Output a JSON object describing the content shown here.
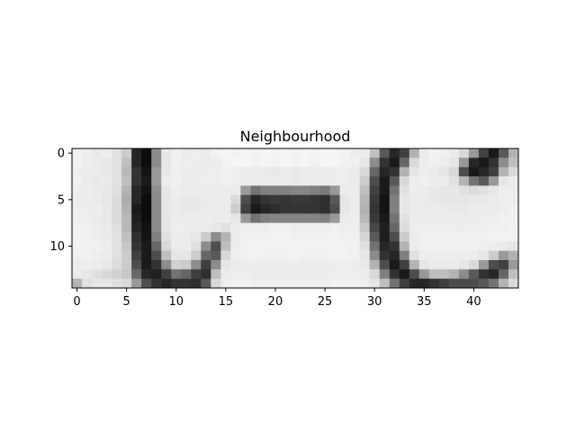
{
  "chart_data": {
    "type": "heatmap",
    "title": "Neighbourhood",
    "colormap": "grayscale (black = low, white = high)",
    "rows": 15,
    "cols": 45,
    "x_ticks": [
      0,
      5,
      10,
      15,
      20,
      25,
      30,
      35,
      40
    ],
    "y_ticks": [
      0,
      5,
      10
    ],
    "xlim": [
      -0.5,
      44.5
    ],
    "ylim": [
      14.5,
      -0.5
    ],
    "grid": false,
    "values": [
      [
        0.95,
        0.93,
        0.91,
        0.93,
        0.88,
        0.8,
        0.15,
        0.05,
        0.55,
        0.9,
        0.94,
        0.92,
        0.93,
        0.92,
        0.95,
        0.96,
        0.95,
        0.96,
        0.95,
        0.96,
        0.95,
        0.96,
        0.95,
        0.96,
        0.95,
        0.96,
        0.96,
        0.95,
        0.93,
        0.92,
        0.75,
        0.35,
        0.15,
        0.25,
        0.7,
        0.92,
        0.95,
        0.94,
        0.92,
        0.85,
        0.6,
        0.25,
        0.1,
        0.35,
        0.7
      ],
      [
        0.94,
        0.93,
        0.92,
        0.91,
        0.88,
        0.75,
        0.15,
        0.05,
        0.55,
        0.9,
        0.94,
        0.93,
        0.93,
        0.92,
        0.93,
        0.95,
        0.96,
        0.96,
        0.95,
        0.96,
        0.95,
        0.96,
        0.95,
        0.96,
        0.95,
        0.96,
        0.96,
        0.95,
        0.94,
        0.9,
        0.55,
        0.2,
        0.1,
        0.4,
        0.85,
        0.93,
        0.94,
        0.93,
        0.9,
        0.6,
        0.15,
        0.1,
        0.2,
        0.55,
        0.75
      ],
      [
        0.93,
        0.92,
        0.92,
        0.91,
        0.88,
        0.72,
        0.2,
        0.08,
        0.6,
        0.91,
        0.94,
        0.93,
        0.92,
        0.93,
        0.93,
        0.94,
        0.93,
        0.92,
        0.92,
        0.92,
        0.91,
        0.92,
        0.91,
        0.92,
        0.92,
        0.92,
        0.93,
        0.93,
        0.92,
        0.85,
        0.4,
        0.15,
        0.2,
        0.7,
        0.9,
        0.93,
        0.92,
        0.9,
        0.85,
        0.3,
        0.1,
        0.15,
        0.25,
        0.7,
        0.85
      ],
      [
        0.94,
        0.92,
        0.91,
        0.92,
        0.88,
        0.75,
        0.2,
        0.1,
        0.6,
        0.92,
        0.94,
        0.92,
        0.93,
        0.93,
        0.93,
        0.94,
        0.93,
        0.92,
        0.92,
        0.92,
        0.92,
        0.92,
        0.91,
        0.92,
        0.92,
        0.92,
        0.93,
        0.93,
        0.92,
        0.8,
        0.3,
        0.1,
        0.35,
        0.85,
        0.93,
        0.94,
        0.93,
        0.92,
        0.88,
        0.7,
        0.45,
        0.35,
        0.6,
        0.9,
        0.92
      ],
      [
        0.93,
        0.93,
        0.92,
        0.91,
        0.87,
        0.7,
        0.15,
        0.08,
        0.55,
        0.9,
        0.93,
        0.92,
        0.92,
        0.93,
        0.92,
        0.92,
        0.92,
        0.6,
        0.45,
        0.5,
        0.5,
        0.5,
        0.52,
        0.52,
        0.5,
        0.48,
        0.6,
        0.92,
        0.92,
        0.75,
        0.25,
        0.1,
        0.45,
        0.88,
        0.93,
        0.92,
        0.91,
        0.9,
        0.9,
        0.88,
        0.86,
        0.88,
        0.9,
        0.93,
        0.93
      ],
      [
        0.92,
        0.93,
        0.92,
        0.9,
        0.86,
        0.68,
        0.15,
        0.05,
        0.55,
        0.9,
        0.92,
        0.91,
        0.91,
        0.92,
        0.92,
        0.92,
        0.85,
        0.3,
        0.15,
        0.2,
        0.22,
        0.2,
        0.22,
        0.22,
        0.2,
        0.18,
        0.35,
        0.9,
        0.92,
        0.72,
        0.22,
        0.08,
        0.5,
        0.9,
        0.92,
        0.92,
        0.91,
        0.9,
        0.9,
        0.9,
        0.91,
        0.91,
        0.92,
        0.93,
        0.93
      ],
      [
        0.93,
        0.93,
        0.93,
        0.91,
        0.86,
        0.7,
        0.1,
        0.05,
        0.55,
        0.9,
        0.92,
        0.91,
        0.91,
        0.92,
        0.92,
        0.92,
        0.8,
        0.25,
        0.1,
        0.15,
        0.18,
        0.2,
        0.2,
        0.2,
        0.2,
        0.18,
        0.3,
        0.9,
        0.92,
        0.7,
        0.2,
        0.08,
        0.5,
        0.9,
        0.92,
        0.92,
        0.92,
        0.92,
        0.91,
        0.91,
        0.92,
        0.92,
        0.92,
        0.93,
        0.94
      ],
      [
        0.93,
        0.93,
        0.92,
        0.91,
        0.86,
        0.72,
        0.12,
        0.05,
        0.55,
        0.9,
        0.92,
        0.92,
        0.92,
        0.93,
        0.92,
        0.93,
        0.9,
        0.6,
        0.45,
        0.5,
        0.52,
        0.52,
        0.52,
        0.52,
        0.52,
        0.5,
        0.6,
        0.92,
        0.93,
        0.72,
        0.22,
        0.1,
        0.45,
        0.88,
        0.92,
        0.92,
        0.92,
        0.92,
        0.92,
        0.92,
        0.92,
        0.93,
        0.93,
        0.94,
        0.94
      ],
      [
        0.94,
        0.94,
        0.93,
        0.92,
        0.87,
        0.72,
        0.15,
        0.08,
        0.55,
        0.9,
        0.93,
        0.93,
        0.92,
        0.92,
        0.9,
        0.88,
        0.92,
        0.93,
        0.93,
        0.93,
        0.94,
        0.94,
        0.93,
        0.93,
        0.93,
        0.93,
        0.94,
        0.93,
        0.93,
        0.78,
        0.28,
        0.12,
        0.4,
        0.86,
        0.93,
        0.93,
        0.93,
        0.93,
        0.93,
        0.93,
        0.93,
        0.93,
        0.94,
        0.94,
        0.95
      ],
      [
        0.94,
        0.94,
        0.93,
        0.92,
        0.88,
        0.75,
        0.18,
        0.08,
        0.5,
        0.88,
        0.92,
        0.92,
        0.9,
        0.8,
        0.55,
        0.7,
        0.92,
        0.94,
        0.94,
        0.94,
        0.95,
        0.95,
        0.94,
        0.94,
        0.94,
        0.94,
        0.95,
        0.94,
        0.94,
        0.84,
        0.35,
        0.12,
        0.3,
        0.8,
        0.92,
        0.94,
        0.94,
        0.94,
        0.94,
        0.94,
        0.94,
        0.94,
        0.95,
        0.95,
        0.95
      ],
      [
        0.95,
        0.94,
        0.94,
        0.93,
        0.88,
        0.78,
        0.2,
        0.1,
        0.4,
        0.85,
        0.92,
        0.92,
        0.88,
        0.55,
        0.3,
        0.75,
        0.93,
        0.95,
        0.95,
        0.95,
        0.95,
        0.95,
        0.95,
        0.95,
        0.95,
        0.95,
        0.95,
        0.95,
        0.94,
        0.88,
        0.45,
        0.15,
        0.2,
        0.7,
        0.92,
        0.94,
        0.94,
        0.94,
        0.94,
        0.94,
        0.94,
        0.93,
        0.93,
        0.92,
        0.9
      ],
      [
        0.94,
        0.94,
        0.93,
        0.92,
        0.88,
        0.8,
        0.25,
        0.1,
        0.3,
        0.75,
        0.9,
        0.9,
        0.8,
        0.4,
        0.35,
        0.85,
        0.93,
        0.94,
        0.95,
        0.94,
        0.94,
        0.94,
        0.95,
        0.94,
        0.94,
        0.94,
        0.95,
        0.95,
        0.94,
        0.9,
        0.55,
        0.2,
        0.15,
        0.5,
        0.88,
        0.93,
        0.93,
        0.93,
        0.93,
        0.93,
        0.92,
        0.9,
        0.8,
        0.6,
        0.7
      ],
      [
        0.93,
        0.93,
        0.92,
        0.91,
        0.87,
        0.8,
        0.3,
        0.1,
        0.2,
        0.55,
        0.82,
        0.8,
        0.55,
        0.25,
        0.55,
        0.9,
        0.92,
        0.93,
        0.93,
        0.93,
        0.93,
        0.93,
        0.93,
        0.92,
        0.92,
        0.93,
        0.93,
        0.93,
        0.93,
        0.91,
        0.7,
        0.3,
        0.1,
        0.25,
        0.7,
        0.9,
        0.92,
        0.92,
        0.92,
        0.9,
        0.85,
        0.6,
        0.3,
        0.25,
        0.6
      ],
      [
        0.92,
        0.9,
        0.88,
        0.85,
        0.82,
        0.78,
        0.4,
        0.15,
        0.12,
        0.25,
        0.45,
        0.4,
        0.25,
        0.18,
        0.75,
        0.92,
        0.93,
        0.93,
        0.92,
        0.92,
        0.92,
        0.92,
        0.92,
        0.92,
        0.92,
        0.92,
        0.93,
        0.93,
        0.93,
        0.92,
        0.85,
        0.5,
        0.2,
        0.1,
        0.3,
        0.6,
        0.75,
        0.75,
        0.7,
        0.55,
        0.35,
        0.2,
        0.15,
        0.4,
        0.75
      ],
      [
        0.7,
        0.88,
        0.9,
        0.9,
        0.88,
        0.85,
        0.6,
        0.3,
        0.2,
        0.15,
        0.2,
        0.2,
        0.18,
        0.35,
        0.85,
        0.93,
        0.94,
        0.94,
        0.93,
        0.93,
        0.93,
        0.93,
        0.93,
        0.93,
        0.93,
        0.93,
        0.94,
        0.94,
        0.94,
        0.93,
        0.9,
        0.75,
        0.45,
        0.25,
        0.15,
        0.15,
        0.2,
        0.25,
        0.3,
        0.3,
        0.3,
        0.35,
        0.45,
        0.7,
        0.85
      ]
    ]
  }
}
